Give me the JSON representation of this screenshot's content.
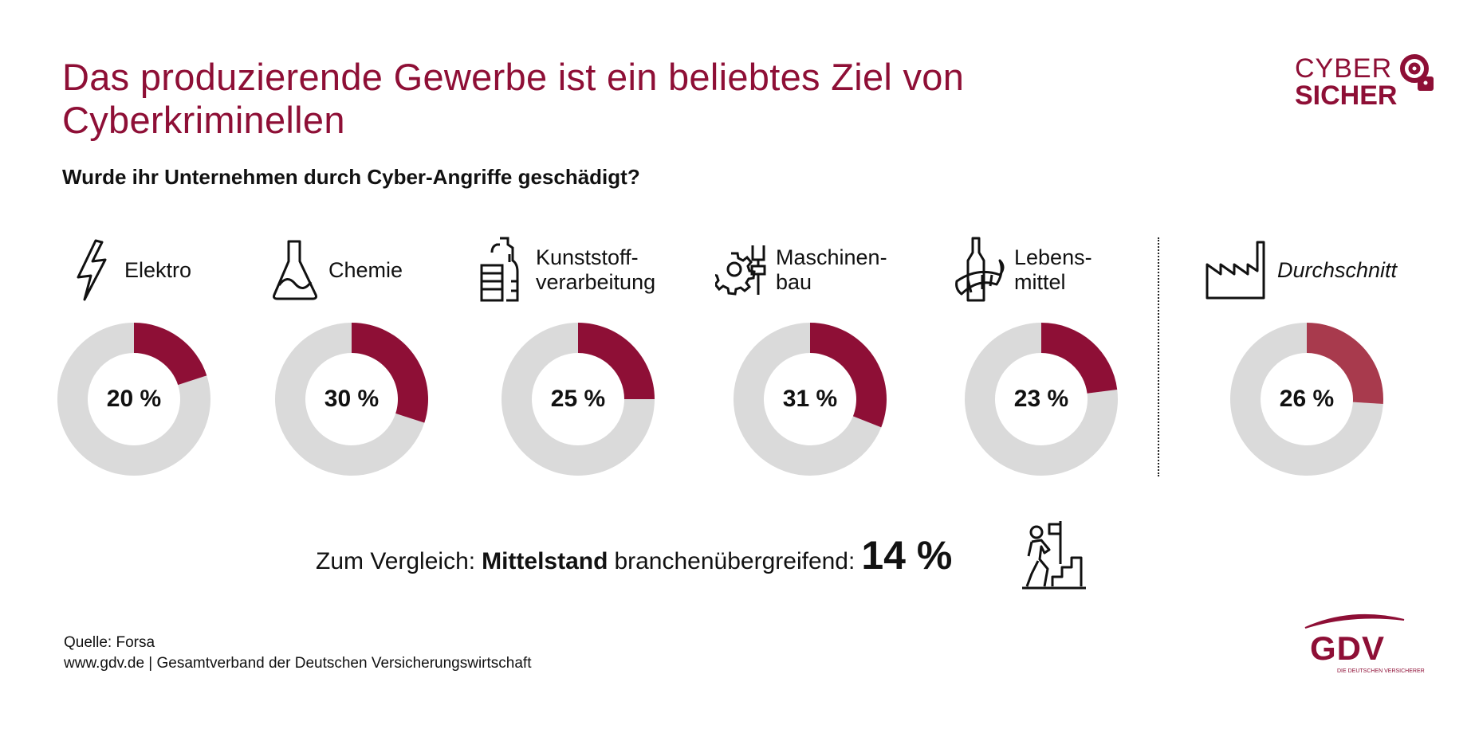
{
  "header": {
    "title": "Das produzierende Gewerbe ist ein beliebtes Ziel von Cyberkriminellen",
    "subtitle": "Wurde ihr Unternehmen durch Cyber-Angriffe geschädigt?"
  },
  "logo_cybersicher": {
    "line1": "CYBER",
    "line2": "SICHER"
  },
  "colors": {
    "accent": "#8e0f36",
    "average": "#a83a4d",
    "track": "#dadada",
    "text": "#111111"
  },
  "chart_data": {
    "type": "pie",
    "variant": "donut",
    "title": "Wurde ihr Unternehmen durch Cyber-Angriffe geschädigt?",
    "unit": "%",
    "categories": [
      "Elektro",
      "Chemie",
      "Kunststoffverarbeitung",
      "Maschinenbau",
      "Lebensmittel",
      "Durchschnitt"
    ],
    "values": [
      20,
      30,
      25,
      31,
      23,
      26
    ],
    "items": [
      {
        "label_lines": [
          "Elektro"
        ],
        "value": 20,
        "display": "20 %",
        "icon": "lightning-icon",
        "italic": false,
        "is_average": false
      },
      {
        "label_lines": [
          "Chemie"
        ],
        "value": 30,
        "display": "30 %",
        "icon": "flask-icon",
        "italic": false,
        "is_average": false
      },
      {
        "label_lines": [
          "Kunststoff-",
          "verarbeitung"
        ],
        "value": 25,
        "display": "25 %",
        "icon": "bottles-icon",
        "italic": false,
        "is_average": false
      },
      {
        "label_lines": [
          "Maschinen-",
          "bau"
        ],
        "value": 31,
        "display": "31 %",
        "icon": "gear-drill-icon",
        "italic": false,
        "is_average": false
      },
      {
        "label_lines": [
          "Lebens-",
          "mittel"
        ],
        "value": 23,
        "display": "23 %",
        "icon": "wine-croissant-icon",
        "italic": false,
        "is_average": false
      },
      {
        "label_lines": [
          "Durchschnitt"
        ],
        "value": 26,
        "display": "26 %",
        "icon": "factory-icon",
        "italic": true,
        "is_average": true
      }
    ],
    "range": [
      0,
      100
    ],
    "legend": "none"
  },
  "comparison": {
    "prefix": "Zum Vergleich:",
    "bold": "Mittelstand",
    "suffix": "branchenübergreifend:",
    "value": "14 %",
    "icon": "climber-icon"
  },
  "footer": {
    "source": "Quelle: Forsa",
    "publisher": "www.gdv.de | Gesamtverband der Deutschen Versicherungswirtschaft"
  },
  "logo_gdv": {
    "word": "GDV",
    "tagline": "DIE DEUTSCHEN VERSICHERER"
  }
}
